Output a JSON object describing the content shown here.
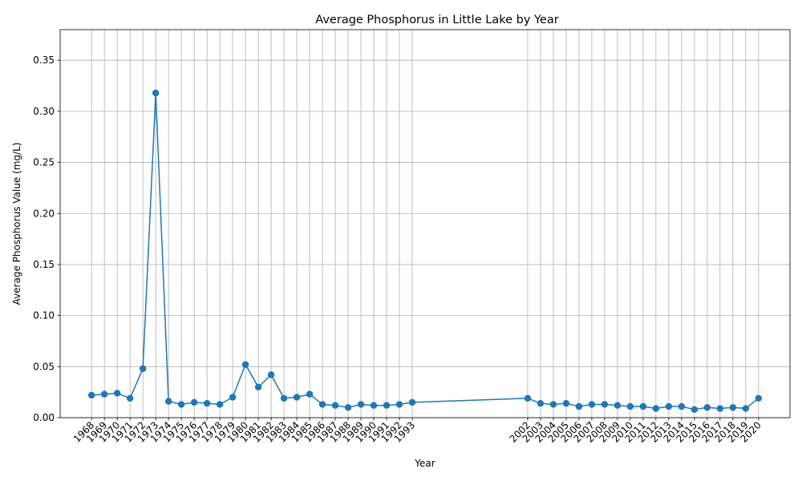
{
  "chart_data": {
    "type": "line",
    "title": "Average Phosphorus in Little Lake by Year",
    "xlabel": "Year",
    "ylabel": "Average Phosphorus Value (mg/L)",
    "ylim": [
      0,
      0.38
    ],
    "yticks": [
      0.0,
      0.05,
      0.1,
      0.15,
      0.2,
      0.25,
      0.3,
      0.35
    ],
    "ytick_labels": [
      "0.00",
      "0.05",
      "0.10",
      "0.15",
      "0.20",
      "0.25",
      "0.30",
      "0.35"
    ],
    "grid": true,
    "color": "#1f77b4",
    "series": [
      {
        "x": [
          1968,
          1969,
          1970,
          1971,
          1972,
          1973,
          1974,
          1975,
          1976,
          1977,
          1978,
          1979,
          1980,
          1981,
          1982,
          1983,
          1984,
          1985,
          1986,
          1987,
          1988,
          1989,
          1990,
          1991,
          1992,
          1993,
          2002,
          2003,
          2004,
          2005,
          2006,
          2007,
          2008,
          2009,
          2010,
          2011,
          2012,
          2013,
          2014,
          2015,
          2016,
          2017,
          2018,
          2019,
          2020
        ],
        "values": [
          0.022,
          0.023,
          0.024,
          0.019,
          0.048,
          0.318,
          0.016,
          0.013,
          0.015,
          0.014,
          0.013,
          0.02,
          0.052,
          0.03,
          0.042,
          0.019,
          0.02,
          0.023,
          0.013,
          0.012,
          0.01,
          0.013,
          0.012,
          0.012,
          0.013,
          0.015,
          0.019,
          0.014,
          0.013,
          0.014,
          0.011,
          0.013,
          0.013,
          0.012,
          0.011,
          0.011,
          0.009,
          0.011,
          0.011,
          0.008,
          0.01,
          0.009,
          0.01,
          0.009,
          0.019
        ]
      }
    ]
  }
}
